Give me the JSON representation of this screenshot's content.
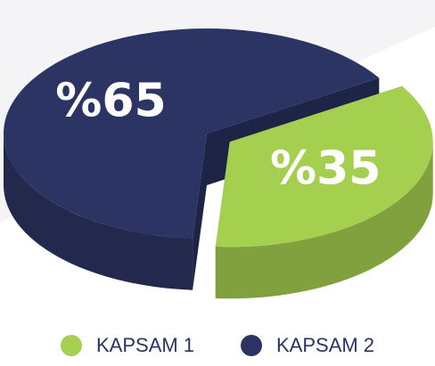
{
  "chart_data": {
    "type": "pie",
    "categories": [
      "KAPSAM 1",
      "KAPSAM 2"
    ],
    "values": [
      35,
      65
    ],
    "value_labels": [
      "%35",
      "%65"
    ],
    "colors": [
      "#a4cf4f",
      "#2b3463"
    ],
    "legend": "bottom"
  }
}
